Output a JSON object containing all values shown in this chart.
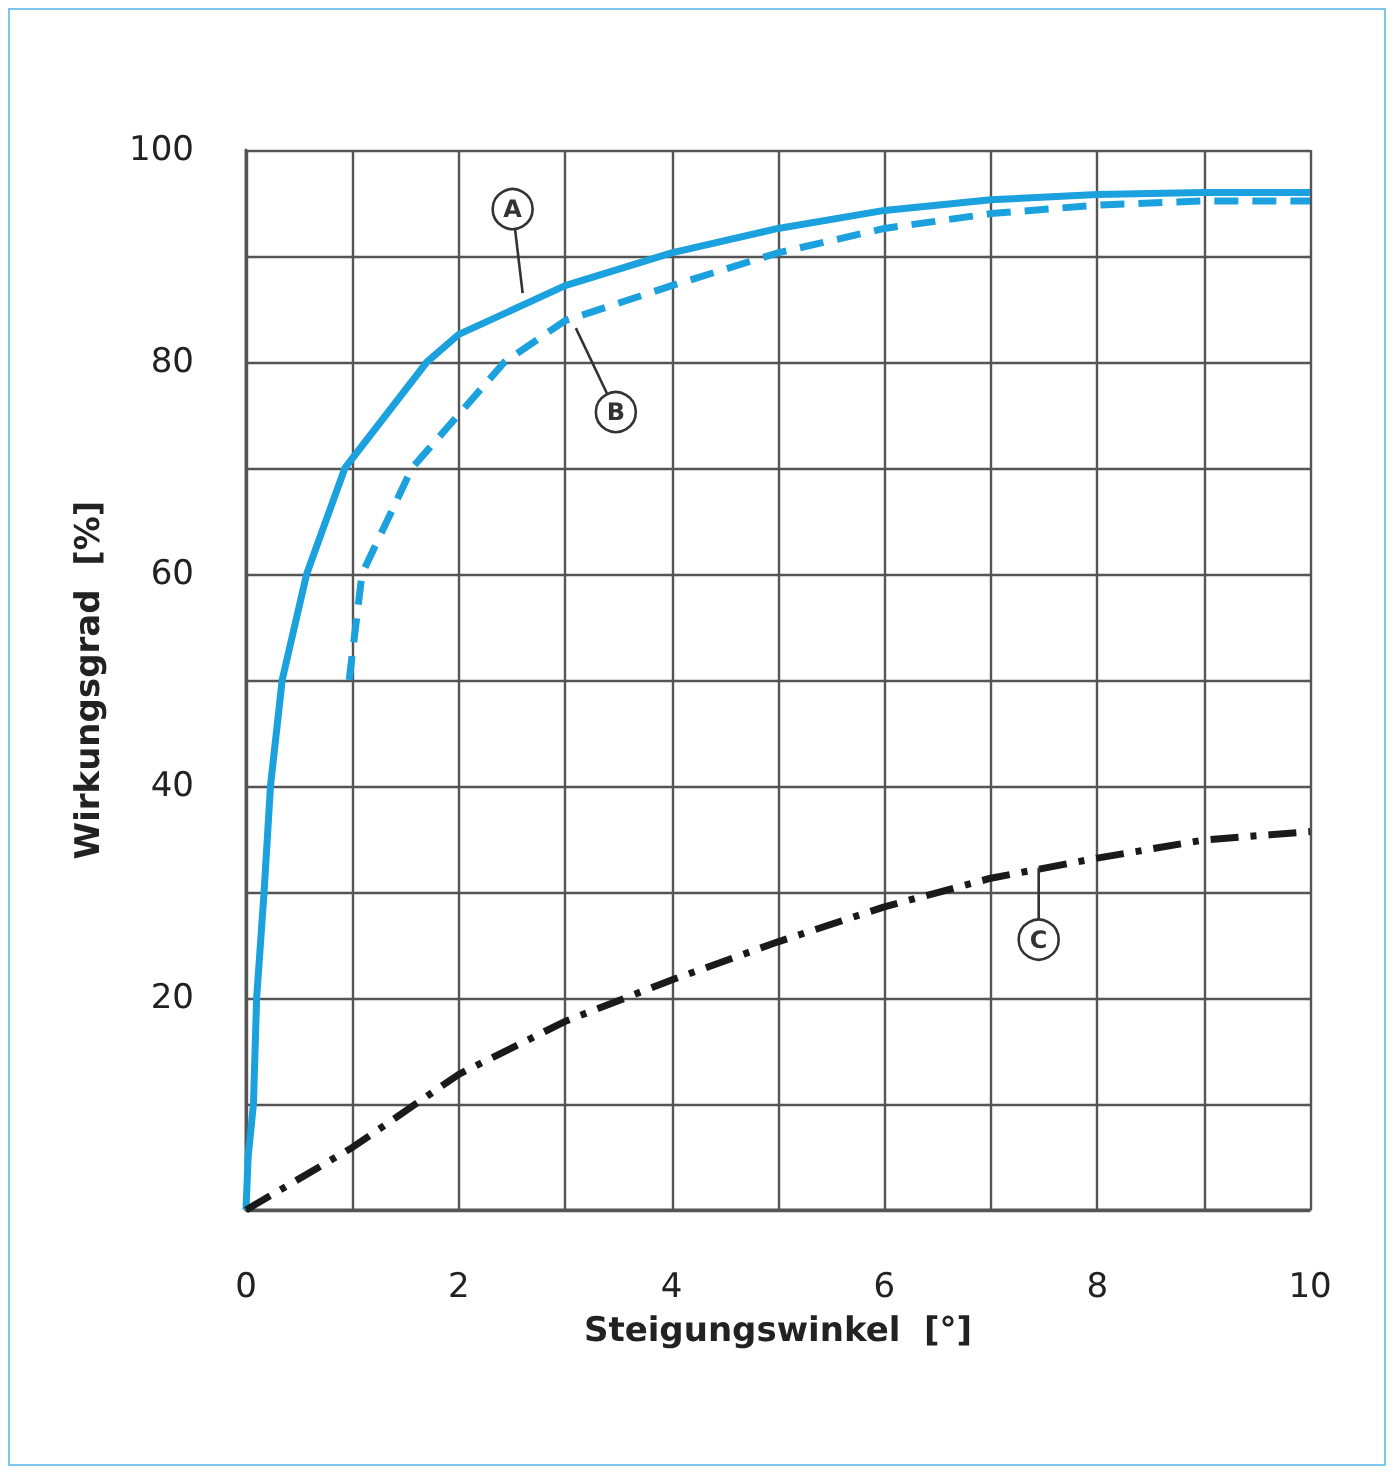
{
  "chart_data": {
    "type": "line",
    "xlabel": "Steigungswinkel  [°]",
    "ylabel": "Wirkungsgrad  [%]",
    "xlim": [
      0,
      10
    ],
    "ylim": [
      0,
      100
    ],
    "xticks": [
      0,
      {
        "value": 1,
        "label": null
      },
      2,
      {
        "value": 3,
        "label": null
      },
      4,
      {
        "value": 5,
        "label": null
      },
      6,
      {
        "value": 7,
        "label": null
      },
      8,
      {
        "value": 9,
        "label": null
      },
      10
    ],
    "yticks": [
      {
        "value": 0,
        "label": null
      },
      {
        "value": 10,
        "label": null
      },
      20,
      {
        "value": 30,
        "label": null
      },
      40,
      {
        "value": 50,
        "label": null
      },
      60,
      {
        "value": 70,
        "label": null
      },
      80,
      {
        "value": 90,
        "label": null
      },
      100
    ],
    "grid": true,
    "marker": "none",
    "series": [
      {
        "color": "#1ba1dd",
        "line_style": "solid",
        "x": [
          0,
          0.02,
          0.07,
          0.1,
          0.17,
          0.23,
          0.34,
          0.57,
          0.93,
          1.7,
          2,
          3,
          4,
          5,
          6,
          7,
          8,
          9,
          10
        ],
        "values": [
          0,
          5,
          10,
          20,
          30,
          40,
          50,
          60,
          70,
          80,
          82.6,
          87.2,
          90.3,
          92.6,
          94.3,
          95.3,
          95.8,
          96,
          96
        ]
      },
      {
        "color": "#1ba1dd",
        "line_style": "dashed",
        "x": [
          0.97,
          1.09,
          1.56,
          2.43,
          3,
          4,
          5,
          6,
          7,
          8,
          9,
          10
        ],
        "values": [
          50,
          60,
          70,
          80,
          83.9,
          87.2,
          90.3,
          92.6,
          94,
          94.8,
          95.2,
          95.2
        ]
      },
      {
        "color": "#1a1a1a",
        "line_style": "dashdot",
        "x": [
          0,
          1,
          2,
          3,
          4,
          5,
          6,
          7,
          8,
          9,
          10
        ],
        "values": [
          0,
          5.9,
          12.8,
          17.8,
          21.7,
          25.3,
          28.6,
          31.3,
          33.2,
          34.9,
          35.7
        ]
      }
    ],
    "annotations": [
      {
        "text": "A",
        "x": 2.6,
        "y": 86.5
      },
      {
        "text": "B",
        "x": 3.1,
        "y": 83.2
      },
      {
        "text": "C",
        "x": 7.45,
        "y": 32.3
      }
    ]
  }
}
